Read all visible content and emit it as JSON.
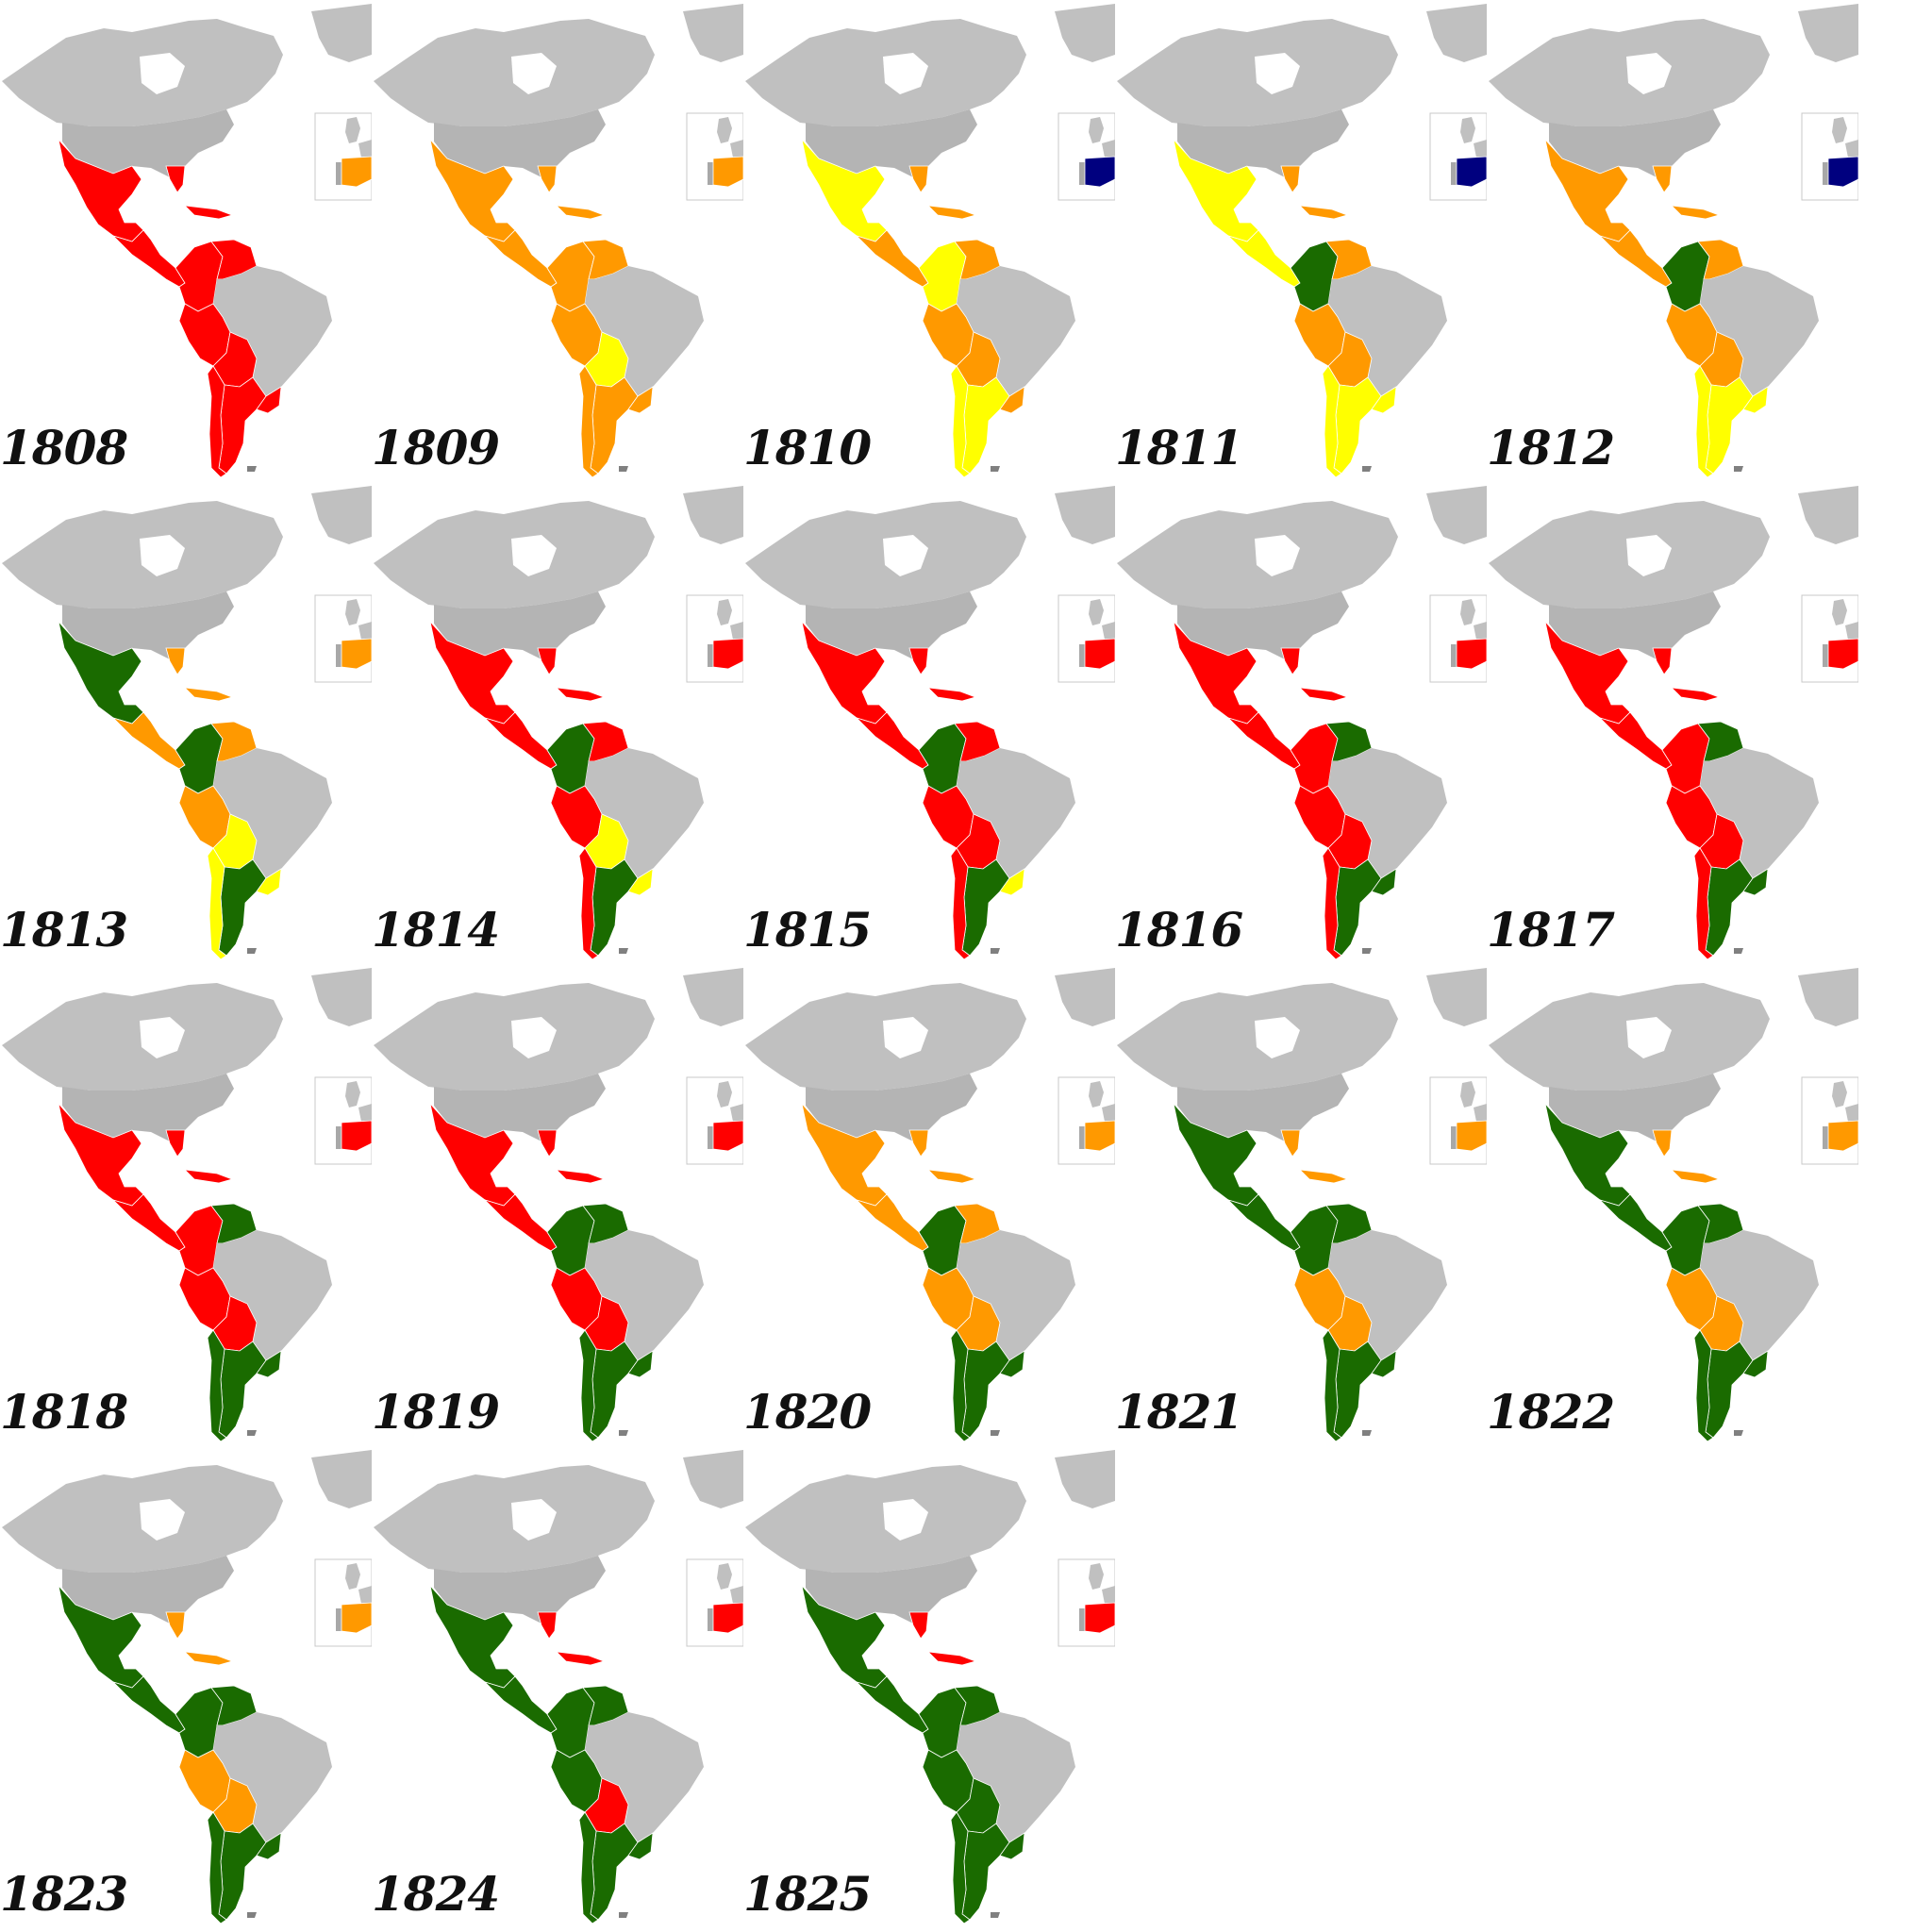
{
  "colors": {
    "red": "#ff0000",
    "orange": "#ff9900",
    "yellow": "#ffff00",
    "green": "#1a6b00",
    "navy": "#00007f",
    "land": "#c0c0c0",
    "land_dark": "#a0a0a0",
    "border": "#ffffff"
  },
  "panels": [
    {
      "year": "1808",
      "spain": "orange",
      "mexico": "red",
      "floridaCaribbean": "red",
      "centralAmerica": "red",
      "grancolombia": "red",
      "venezuela": "red",
      "peru": "red",
      "bolivia": "red",
      "chile": "red",
      "argentina": "red",
      "uruguay": "red"
    },
    {
      "year": "1809",
      "spain": "orange",
      "mexico": "orange",
      "floridaCaribbean": "orange",
      "centralAmerica": "orange",
      "grancolombia": "orange",
      "venezuela": "orange",
      "peru": "orange",
      "bolivia": "yellow",
      "chile": "orange",
      "argentina": "orange",
      "uruguay": "orange"
    },
    {
      "year": "1810",
      "spain": "navy",
      "mexico": "yellow",
      "floridaCaribbean": "orange",
      "centralAmerica": "orange",
      "grancolombia": "yellow",
      "venezuela": "orange",
      "peru": "orange",
      "bolivia": "orange",
      "chile": "yellow",
      "argentina": "yellow",
      "uruguay": "orange"
    },
    {
      "year": "1811",
      "spain": "navy",
      "mexico": "yellow",
      "floridaCaribbean": "orange",
      "centralAmerica": "yellow",
      "grancolombia": "green",
      "venezuela": "orange",
      "peru": "orange",
      "bolivia": "orange",
      "chile": "yellow",
      "argentina": "yellow",
      "uruguay": "yellow"
    },
    {
      "year": "1812",
      "spain": "navy",
      "mexico": "orange",
      "floridaCaribbean": "orange",
      "centralAmerica": "orange",
      "grancolombia": "green",
      "venezuela": "orange",
      "peru": "orange",
      "bolivia": "orange",
      "chile": "yellow",
      "argentina": "yellow",
      "uruguay": "yellow"
    },
    {
      "year": "1813",
      "spain": "orange",
      "mexico": "green",
      "floridaCaribbean": "orange",
      "centralAmerica": "orange",
      "grancolombia": "green",
      "venezuela": "orange",
      "peru": "orange",
      "bolivia": "yellow",
      "chile": "yellow",
      "argentina": "green",
      "uruguay": "yellow"
    },
    {
      "year": "1814",
      "spain": "red",
      "mexico": "red",
      "floridaCaribbean": "red",
      "centralAmerica": "red",
      "grancolombia": "green",
      "venezuela": "red",
      "peru": "red",
      "bolivia": "yellow",
      "chile": "red",
      "argentina": "green",
      "uruguay": "yellow"
    },
    {
      "year": "1815",
      "spain": "red",
      "mexico": "red",
      "floridaCaribbean": "red",
      "centralAmerica": "red",
      "grancolombia": "green",
      "venezuela": "red",
      "peru": "red",
      "bolivia": "red",
      "chile": "red",
      "argentina": "green",
      "uruguay": "yellow"
    },
    {
      "year": "1816",
      "spain": "red",
      "mexico": "red",
      "floridaCaribbean": "red",
      "centralAmerica": "red",
      "grancolombia": "red",
      "venezuela": "green",
      "peru": "red",
      "bolivia": "red",
      "chile": "red",
      "argentina": "green",
      "uruguay": "green"
    },
    {
      "year": "1817",
      "spain": "red",
      "mexico": "red",
      "floridaCaribbean": "red",
      "centralAmerica": "red",
      "grancolombia": "red",
      "venezuela": "green",
      "peru": "red",
      "bolivia": "red",
      "chile": "red",
      "argentina": "green",
      "uruguay": "green"
    },
    {
      "year": "1818",
      "spain": "red",
      "mexico": "red",
      "floridaCaribbean": "red",
      "centralAmerica": "red",
      "grancolombia": "red",
      "venezuela": "green",
      "peru": "red",
      "bolivia": "red",
      "chile": "green",
      "argentina": "green",
      "uruguay": "green"
    },
    {
      "year": "1819",
      "spain": "red",
      "mexico": "red",
      "floridaCaribbean": "red",
      "centralAmerica": "red",
      "grancolombia": "green",
      "venezuela": "green",
      "peru": "red",
      "bolivia": "red",
      "chile": "green",
      "argentina": "green",
      "uruguay": "green"
    },
    {
      "year": "1820",
      "spain": "orange",
      "mexico": "orange",
      "floridaCaribbean": "orange",
      "centralAmerica": "orange",
      "grancolombia": "green",
      "venezuela": "orange",
      "peru": "orange",
      "bolivia": "orange",
      "chile": "green",
      "argentina": "green",
      "uruguay": "green"
    },
    {
      "year": "1821",
      "spain": "orange",
      "mexico": "green",
      "floridaCaribbean": "orange",
      "centralAmerica": "green",
      "grancolombia": "green",
      "venezuela": "green",
      "peru": "orange",
      "bolivia": "orange",
      "chile": "green",
      "argentina": "green",
      "uruguay": "green"
    },
    {
      "year": "1822",
      "spain": "orange",
      "mexico": "green",
      "floridaCaribbean": "orange",
      "centralAmerica": "green",
      "grancolombia": "green",
      "venezuela": "green",
      "peru": "orange",
      "bolivia": "orange",
      "chile": "green",
      "argentina": "green",
      "uruguay": "green"
    },
    {
      "year": "1823",
      "spain": "orange",
      "mexico": "green",
      "floridaCaribbean": "orange",
      "centralAmerica": "green",
      "grancolombia": "green",
      "venezuela": "green",
      "peru": "orange",
      "bolivia": "orange",
      "chile": "green",
      "argentina": "green",
      "uruguay": "green"
    },
    {
      "year": "1824",
      "spain": "red",
      "mexico": "green",
      "floridaCaribbean": "red",
      "centralAmerica": "green",
      "grancolombia": "green",
      "venezuela": "green",
      "peru": "green",
      "bolivia": "red",
      "chile": "green",
      "argentina": "green",
      "uruguay": "green"
    },
    {
      "year": "1825",
      "spain": "red",
      "mexico": "green",
      "floridaCaribbean": "red",
      "centralAmerica": "green",
      "grancolombia": "green",
      "venezuela": "green",
      "peru": "green",
      "bolivia": "green",
      "chile": "green",
      "argentina": "green",
      "uruguay": "green"
    }
  ]
}
